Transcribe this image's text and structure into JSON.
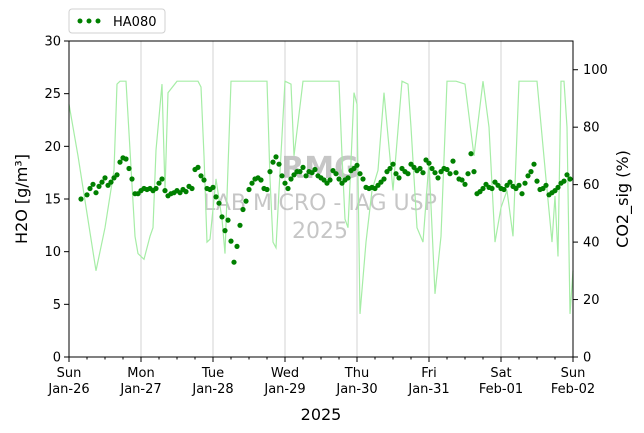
{
  "chart_data": {
    "type": "scatter",
    "colors": {
      "primary": "#008000",
      "secondary": "#a6eda6",
      "grid": "#c8c8c8",
      "watermark": "#b4b4b4"
    },
    "legend": {
      "placement": "top-left",
      "entries": [
        "HA080"
      ]
    },
    "xlabel": "2025",
    "x_ticks": [
      {
        "day": "Sun",
        "date": "Jan-26"
      },
      {
        "day": "Mon",
        "date": "Jan-27"
      },
      {
        "day": "Tue",
        "date": "Jan-28"
      },
      {
        "day": "Wed",
        "date": "Jan-29"
      },
      {
        "day": "Thu",
        "date": "Jan-30"
      },
      {
        "day": "Fri",
        "date": "Jan-31"
      },
      {
        "day": "Sat",
        "date": "Feb-01"
      },
      {
        "day": "Sun",
        "date": "Feb-02"
      }
    ],
    "xlim": [
      "2025-01-26",
      "2025-02-02"
    ],
    "grid": "x-major",
    "y_left": {
      "label": "H2O [g/m³]",
      "range": [
        0,
        30
      ],
      "ticks": [
        0,
        5,
        10,
        15,
        20,
        25,
        30
      ]
    },
    "y_right": {
      "label": "CO2_sig (%)",
      "range": [
        0,
        110
      ],
      "ticks": [
        0,
        20,
        40,
        60,
        80,
        100
      ]
    },
    "watermark": {
      "line1": "RMG",
      "line2": "LAB MICRO - IAG USP",
      "line3": "2025"
    },
    "series": [
      {
        "name": "HA080",
        "axis": "left",
        "style": "points",
        "x": [
          "2025-01-26 04:00",
          "2025-01-26 06:00",
          "2025-01-26 07:00",
          "2025-01-26 08:00",
          "2025-01-26 09:00",
          "2025-01-26 10:00",
          "2025-01-26 11:00",
          "2025-01-26 12:00",
          "2025-01-26 13:00",
          "2025-01-26 14:00",
          "2025-01-26 15:00",
          "2025-01-26 16:00",
          "2025-01-26 17:00",
          "2025-01-26 18:00",
          "2025-01-26 19:00",
          "2025-01-26 20:00",
          "2025-01-26 21:00",
          "2025-01-26 22:00",
          "2025-01-26 23:00",
          "2025-01-27 00:00",
          "2025-01-27 01:00",
          "2025-01-27 02:00",
          "2025-01-27 03:00",
          "2025-01-27 04:00",
          "2025-01-27 05:00",
          "2025-01-27 06:00",
          "2025-01-27 07:00",
          "2025-01-27 08:00",
          "2025-01-27 09:00",
          "2025-01-27 10:00",
          "2025-01-27 11:00",
          "2025-01-27 12:00",
          "2025-01-27 13:00",
          "2025-01-27 14:00",
          "2025-01-27 15:00",
          "2025-01-27 16:00",
          "2025-01-27 17:00",
          "2025-01-27 18:00",
          "2025-01-27 19:00",
          "2025-01-27 20:00",
          "2025-01-27 21:00",
          "2025-01-27 22:00",
          "2025-01-27 23:00",
          "2025-01-28 00:00",
          "2025-01-28 01:00",
          "2025-01-28 02:00",
          "2025-01-28 03:00",
          "2025-01-28 04:00",
          "2025-01-28 05:00",
          "2025-01-28 06:00",
          "2025-01-28 07:00",
          "2025-01-28 08:00",
          "2025-01-28 09:00",
          "2025-01-28 10:00",
          "2025-01-28 11:00",
          "2025-01-28 12:00",
          "2025-01-28 13:00",
          "2025-01-28 14:00",
          "2025-01-28 15:00",
          "2025-01-28 16:00",
          "2025-01-28 17:00",
          "2025-01-28 18:00",
          "2025-01-28 19:00",
          "2025-01-28 20:00",
          "2025-01-28 21:00",
          "2025-01-28 22:00",
          "2025-01-28 23:00",
          "2025-01-29 00:00",
          "2025-01-29 01:00",
          "2025-01-29 02:00",
          "2025-01-29 03:00",
          "2025-01-29 04:00",
          "2025-01-29 05:00",
          "2025-01-29 06:00",
          "2025-01-29 07:00",
          "2025-01-29 08:00",
          "2025-01-29 09:00",
          "2025-01-29 10:00",
          "2025-01-29 11:00",
          "2025-01-29 12:00",
          "2025-01-29 13:00",
          "2025-01-29 14:00",
          "2025-01-29 15:00",
          "2025-01-29 16:00",
          "2025-01-29 17:00",
          "2025-01-29 18:00",
          "2025-01-29 19:00",
          "2025-01-29 20:00",
          "2025-01-29 21:00",
          "2025-01-29 22:00",
          "2025-01-29 23:00",
          "2025-01-30 00:00",
          "2025-01-30 01:00",
          "2025-01-30 02:00",
          "2025-01-30 03:00",
          "2025-01-30 04:00",
          "2025-01-30 05:00",
          "2025-01-30 06:00",
          "2025-01-30 07:00",
          "2025-01-30 08:00",
          "2025-01-30 09:00",
          "2025-01-30 10:00",
          "2025-01-30 11:00",
          "2025-01-30 12:00",
          "2025-01-30 13:00",
          "2025-01-30 14:00",
          "2025-01-30 15:00",
          "2025-01-30 16:00",
          "2025-01-30 17:00",
          "2025-01-30 18:00",
          "2025-01-30 19:00",
          "2025-01-30 20:00",
          "2025-01-30 21:00",
          "2025-01-30 22:00",
          "2025-01-30 23:00",
          "2025-01-31 00:00",
          "2025-01-31 01:00",
          "2025-01-31 02:00",
          "2025-01-31 03:00",
          "2025-01-31 04:00",
          "2025-01-31 05:00",
          "2025-01-31 06:00",
          "2025-01-31 07:00",
          "2025-01-31 08:00",
          "2025-01-31 09:00",
          "2025-01-31 10:00",
          "2025-01-31 11:00",
          "2025-01-31 12:00",
          "2025-01-31 13:00",
          "2025-01-31 14:00",
          "2025-01-31 15:00",
          "2025-01-31 16:00",
          "2025-01-31 17:00",
          "2025-01-31 18:00",
          "2025-01-31 19:00",
          "2025-01-31 20:00",
          "2025-01-31 21:00",
          "2025-01-31 22:00",
          "2025-01-31 23:00",
          "2025-02-01 00:00",
          "2025-02-01 01:00",
          "2025-02-01 02:00",
          "2025-02-01 03:00",
          "2025-02-01 04:00",
          "2025-02-01 05:00",
          "2025-02-01 06:00",
          "2025-02-01 07:00",
          "2025-02-01 08:00",
          "2025-02-01 09:00",
          "2025-02-01 10:00",
          "2025-02-01 11:00",
          "2025-02-01 12:00",
          "2025-02-01 13:00",
          "2025-02-01 14:00",
          "2025-02-01 15:00",
          "2025-02-01 16:00",
          "2025-02-01 17:00",
          "2025-02-01 18:00",
          "2025-02-01 19:00",
          "2025-02-01 20:00",
          "2025-02-01 21:00",
          "2025-02-01 22:00",
          "2025-02-01 23:00"
        ],
        "y": [
          15.0,
          15.4,
          16.0,
          16.4,
          15.6,
          16.2,
          16.6,
          17.0,
          16.3,
          16.6,
          17.0,
          17.3,
          18.5,
          18.9,
          18.8,
          17.9,
          16.9,
          15.5,
          15.5,
          15.8,
          16.0,
          15.9,
          16.0,
          15.8,
          16.0,
          16.5,
          16.9,
          15.8,
          15.3,
          15.5,
          15.6,
          15.8,
          15.6,
          15.9,
          15.7,
          16.2,
          16.0,
          17.8,
          18.0,
          17.2,
          16.8,
          16.0,
          15.9,
          16.1,
          15.2,
          14.6,
          13.3,
          12.0,
          13.0,
          11.0,
          9.0,
          10.5,
          12.5,
          14.0,
          14.8,
          15.9,
          16.5,
          16.9,
          17.0,
          16.8,
          16.0,
          15.9,
          17.6,
          18.5,
          19.0,
          18.3,
          17.2,
          16.5,
          16.0,
          16.9,
          17.3,
          17.6,
          17.6,
          18.0,
          17.2,
          17.6,
          17.5,
          17.8,
          17.2,
          17.0,
          16.8,
          16.5,
          16.8,
          17.7,
          17.4,
          16.9,
          16.5,
          16.8,
          17.0,
          17.7,
          17.9,
          18.2,
          17.4,
          16.9,
          16.1,
          16.0,
          16.1,
          16.0,
          16.3,
          16.6,
          16.9,
          17.6,
          17.9,
          18.3,
          17.4,
          17.0,
          17.9,
          17.6,
          17.4,
          18.3,
          18.0,
          17.7,
          17.9,
          17.5,
          18.7,
          18.4,
          17.9,
          17.5,
          17.0,
          17.6,
          17.9,
          17.8,
          17.4,
          18.6,
          17.5,
          16.9,
          16.8,
          16.4,
          17.4,
          19.3,
          17.6,
          15.5,
          15.7,
          16.0,
          16.4,
          16.1,
          16.0,
          16.6,
          16.3,
          16.0,
          15.9,
          16.3,
          16.6,
          16.2,
          16.0,
          16.3,
          15.5,
          16.5,
          17.2,
          17.6,
          18.3,
          16.7,
          15.9,
          16.0,
          16.3,
          15.4,
          15.6,
          15.8,
          16.1,
          16.5,
          16.7,
          17.3,
          16.9
        ]
      },
      {
        "name": "",
        "axis": "right",
        "style": "line",
        "x": [
          "2025-01-26 00:00",
          "2025-01-26 03:00",
          "2025-01-26 06:00",
          "2025-01-26 09:00",
          "2025-01-26 12:00",
          "2025-01-26 15:00",
          "2025-01-26 16:00",
          "2025-01-26 17:00",
          "2025-01-26 18:00",
          "2025-01-26 19:00",
          "2025-01-26 21:00",
          "2025-01-26 22:00",
          "2025-01-26 23:00",
          "2025-01-27 01:00",
          "2025-01-27 03:00",
          "2025-01-27 04:00",
          "2025-01-27 05:00",
          "2025-01-27 07:00",
          "2025-01-27 08:00",
          "2025-01-27 09:00",
          "2025-01-27 12:00",
          "2025-01-27 15:00",
          "2025-01-27 18:00",
          "2025-01-27 19:00",
          "2025-01-27 20:00",
          "2025-01-27 21:00",
          "2025-01-27 22:00",
          "2025-01-27 23:00",
          "2025-01-28 01:00",
          "2025-01-28 03:00",
          "2025-01-28 04:00",
          "2025-01-28 06:00",
          "2025-01-28 09:00",
          "2025-01-28 12:00",
          "2025-01-28 15:00",
          "2025-01-28 18:00",
          "2025-01-28 19:00",
          "2025-01-28 20:00",
          "2025-01-28 21:00",
          "2025-01-28 22:00",
          "2025-01-29 00:00",
          "2025-01-29 02:00",
          "2025-01-29 03:00",
          "2025-01-29 06:00",
          "2025-01-29 09:00",
          "2025-01-29 12:00",
          "2025-01-29 15:00",
          "2025-01-29 18:00",
          "2025-01-29 19:00",
          "2025-01-29 20:00",
          "2025-01-29 21:00",
          "2025-01-29 22:00",
          "2025-01-29 23:00",
          "2025-01-30 00:00",
          "2025-01-30 01:00",
          "2025-01-30 03:00",
          "2025-01-30 05:00",
          "2025-01-30 07:00",
          "2025-01-30 09:00",
          "2025-01-30 12:00",
          "2025-01-30 15:00",
          "2025-01-30 17:00",
          "2025-01-30 18:00",
          "2025-01-30 20:00",
          "2025-01-30 22:00",
          "2025-01-31 00:00",
          "2025-01-31 02:00",
          "2025-01-31 04:00",
          "2025-01-31 06:00",
          "2025-01-31 09:00",
          "2025-01-31 12:00",
          "2025-01-31 15:00",
          "2025-01-31 18:00",
          "2025-01-31 20:00",
          "2025-01-31 22:00",
          "2025-02-01 00:00",
          "2025-02-01 02:00",
          "2025-02-01 04:00",
          "2025-02-01 06:00",
          "2025-02-01 09:00",
          "2025-02-01 12:00",
          "2025-02-01 15:00",
          "2025-02-01 17:00",
          "2025-02-01 18:00",
          "2025-02-01 19:00",
          "2025-02-01 20:00",
          "2025-02-01 21:00",
          "2025-02-01 22:00",
          "2025-02-01 23:00",
          "2025-02-02 00:00"
        ],
        "y": [
          88,
          70,
          50,
          30,
          45,
          65,
          95,
          96,
          96,
          96,
          60,
          42,
          36,
          34,
          42,
          45,
          72,
          95,
          58,
          92,
          96,
          96,
          96,
          96,
          94,
          70,
          40,
          41,
          62,
          48,
          36,
          96,
          96,
          96,
          96,
          96,
          62,
          40,
          38,
          58,
          96,
          95,
          70,
          96,
          96,
          96,
          96,
          96,
          70,
          48,
          45,
          68,
          92,
          88,
          15,
          40,
          58,
          65,
          92,
          58,
          96,
          95,
          80,
          45,
          40,
          68,
          22,
          42,
          96,
          96,
          95,
          70,
          96,
          80,
          40,
          52,
          58,
          42,
          96,
          96,
          96,
          62,
          40,
          56,
          35,
          96,
          96,
          80,
          15,
          30
        ]
      }
    ]
  }
}
